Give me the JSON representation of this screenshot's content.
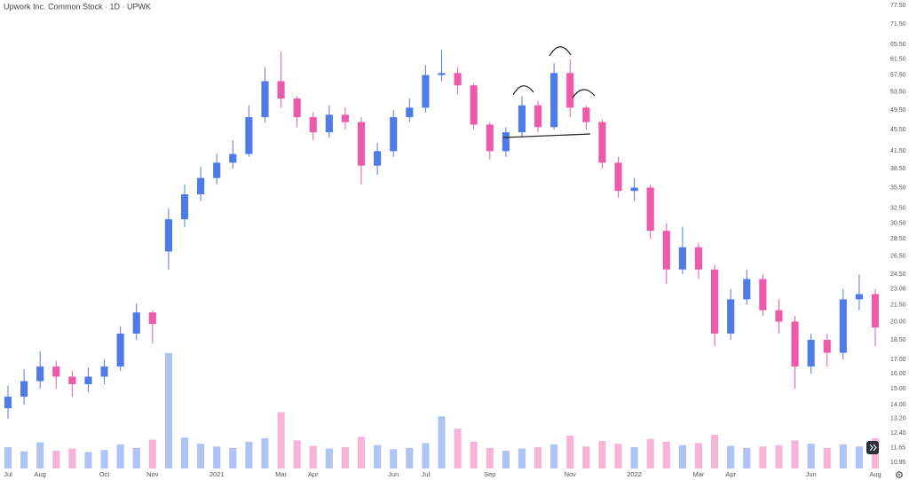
{
  "chart_data": {
    "type": "candlestick",
    "title": "Upwork Inc. Common Stock · 1D · UPWK",
    "log_scale": true,
    "grid": false,
    "up_color": "#4f7be8",
    "down_color": "#ec5aa9",
    "categories": [
      "Jul",
      null,
      "Aug",
      null,
      null,
      null,
      "Oct",
      null,
      null,
      "Nov",
      null,
      null,
      null,
      "2021",
      null,
      null,
      null,
      "Mar",
      null,
      "Apr",
      null,
      null,
      null,
      null,
      "Jun",
      null,
      "Jul",
      null,
      null,
      null,
      "Sep",
      null,
      null,
      null,
      null,
      "Nov",
      null,
      null,
      null,
      "2022",
      null,
      null,
      null,
      "Mar",
      null,
      "Apr",
      null,
      null,
      null,
      null,
      "Jun",
      null,
      null,
      null,
      "Aug"
    ],
    "open": [
      13.8,
      14.5,
      15.5,
      16.5,
      15.8,
      15.3,
      15.8,
      16.5,
      19.0,
      20.8,
      27.0,
      31.0,
      34.5,
      37.0,
      39.5,
      41.0,
      48.0,
      56.0,
      52.0,
      48.0,
      45.0,
      48.5,
      47.0,
      39.0,
      41.5,
      48.0,
      50.0,
      57.5,
      58.0,
      55.0,
      46.5,
      41.5,
      45.0,
      50.5,
      46.0,
      58.0,
      50.0,
      47.0,
      39.5,
      35.0,
      35.5,
      29.5,
      25.0,
      27.5,
      25.0,
      19.0,
      22.0,
      24.0,
      21.0,
      20.0,
      16.5,
      18.5,
      17.5,
      22.0,
      22.5
    ],
    "high": [
      15.2,
      16.3,
      17.6,
      16.9,
      16.2,
      16.4,
      17.0,
      19.6,
      21.6,
      21.0,
      32.5,
      36.0,
      38.8,
      41.0,
      43.5,
      50.5,
      59.5,
      63.5,
      52.5,
      49.0,
      50.5,
      50.0,
      48.0,
      43.0,
      49.5,
      52.0,
      60.0,
      64.0,
      59.5,
      55.5,
      47.0,
      46.0,
      52.5,
      51.5,
      60.5,
      61.5,
      50.5,
      47.5,
      40.5,
      37.0,
      36.0,
      30.5,
      30.0,
      28.0,
      25.5,
      23.0,
      25.0,
      24.5,
      22.0,
      20.5,
      19.0,
      19.0,
      23.0,
      24.5,
      23.0
    ],
    "low": [
      13.2,
      14.0,
      15.0,
      15.0,
      14.5,
      14.8,
      15.3,
      16.2,
      18.5,
      18.2,
      25.0,
      30.0,
      33.5,
      36.0,
      38.5,
      40.5,
      47.0,
      50.0,
      46.0,
      43.5,
      44.0,
      45.5,
      36.0,
      37.5,
      40.5,
      47.0,
      49.0,
      56.0,
      53.0,
      45.5,
      40.0,
      40.5,
      44.0,
      45.0,
      45.5,
      48.0,
      45.5,
      38.5,
      34.0,
      33.5,
      28.5,
      23.5,
      24.5,
      24.0,
      18.0,
      18.5,
      21.5,
      20.5,
      19.0,
      15.0,
      16.0,
      16.5,
      17.0,
      21.0,
      18.0
    ],
    "close": [
      14.5,
      15.5,
      16.5,
      15.8,
      15.3,
      15.8,
      16.5,
      19.0,
      20.8,
      19.8,
      31.0,
      34.5,
      37.0,
      39.5,
      41.0,
      48.0,
      56.0,
      52.0,
      48.0,
      45.0,
      48.5,
      47.0,
      39.0,
      41.5,
      48.0,
      50.0,
      57.5,
      58.0,
      55.0,
      46.5,
      41.5,
      45.0,
      50.5,
      46.0,
      58.0,
      50.0,
      47.0,
      39.5,
      35.0,
      35.5,
      29.5,
      25.0,
      27.5,
      25.0,
      19.0,
      22.0,
      24.0,
      21.0,
      20.0,
      16.5,
      18.5,
      17.5,
      22.0,
      22.5,
      19.5
    ],
    "volume": [
      3.1,
      2.5,
      3.8,
      2.6,
      2.9,
      2.4,
      2.7,
      3.5,
      3.0,
      4.2,
      16.8,
      4.5,
      3.6,
      3.2,
      3.0,
      3.9,
      4.4,
      8.2,
      4.1,
      3.3,
      2.9,
      3.1,
      4.6,
      3.4,
      2.8,
      3.0,
      3.7,
      7.6,
      5.8,
      3.9,
      3.0,
      2.6,
      2.9,
      3.1,
      3.5,
      4.8,
      3.2,
      4.0,
      3.6,
      3.1,
      4.3,
      3.9,
      3.4,
      3.7,
      4.9,
      3.3,
      3.0,
      3.2,
      3.4,
      4.1,
      3.6,
      3.0,
      3.5,
      3.2,
      4.4
    ],
    "ylim": [
      10.95,
      77.5
    ],
    "yticks": [
      {
        "value": 77.5,
        "label": "77.50"
      },
      {
        "value": 71.5,
        "label": "71.50"
      },
      {
        "value": 65.5,
        "label": "65.50"
      },
      {
        "value": 61.5,
        "label": "61.50"
      },
      {
        "value": 57.5,
        "label": "57.50"
      },
      {
        "value": 53.5,
        "label": "53.50"
      },
      {
        "value": 49.5,
        "label": "49.50"
      },
      {
        "value": 45.5,
        "label": "45.50"
      },
      {
        "value": 41.5,
        "label": "41.50"
      },
      {
        "value": 38.5,
        "label": "38.50"
      },
      {
        "value": 35.5,
        "label": "35.50"
      },
      {
        "value": 32.5,
        "label": "32.50"
      },
      {
        "value": 30.5,
        "label": "30.50"
      },
      {
        "value": 28.5,
        "label": "28.50"
      },
      {
        "value": 26.5,
        "label": "26.50"
      },
      {
        "value": 24.5,
        "label": "24.50"
      },
      {
        "value": 23,
        "label": "23.00"
      },
      {
        "value": 21.5,
        "label": "21.50"
      },
      {
        "value": 20,
        "label": "20.00"
      },
      {
        "value": 18.5,
        "label": "18.50"
      },
      {
        "value": 17,
        "label": "17.00"
      },
      {
        "value": 16,
        "label": "16.00"
      },
      {
        "value": 15,
        "label": "15.00"
      },
      {
        "value": 14,
        "label": "14.00"
      },
      {
        "value": 13.2,
        "label": "13.20"
      },
      {
        "value": 12.4,
        "label": "12.40"
      },
      {
        "value": 11.65,
        "label": "11.65"
      },
      {
        "value": 10.95,
        "label": "10.95"
      }
    ]
  }
}
